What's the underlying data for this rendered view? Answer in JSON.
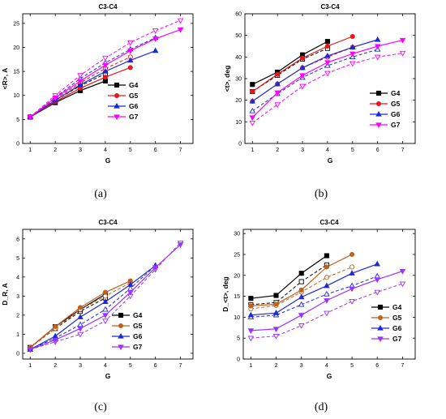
{
  "chart_data": [
    {
      "panel_label": "(a)",
      "type": "line",
      "title": "C3-C4",
      "xlabel": "G",
      "ylabel": "<R>, A",
      "xlim": [
        0.7,
        7.5
      ],
      "ylim": [
        0,
        27
      ],
      "xticks": [
        1,
        2,
        3,
        4,
        5,
        6,
        7
      ],
      "yticks": [
        0,
        5,
        10,
        15,
        20,
        25
      ],
      "legend_position": "lower-right",
      "series": [
        {
          "name": "G4",
          "color": "#000000",
          "marker": "square",
          "solid": {
            "x": [
              1,
              2,
              3,
              4
            ],
            "y": [
              5.5,
              8.5,
              11.0,
              13.0
            ]
          },
          "dashed": {
            "x": [
              1,
              2,
              3,
              4
            ],
            "y": [
              5.5,
              9.0,
              12.0,
              14.5
            ]
          }
        },
        {
          "name": "G5",
          "color": "#e8151b",
          "marker": "circle",
          "solid": {
            "x": [
              1,
              2,
              3,
              4,
              5
            ],
            "y": [
              5.5,
              8.7,
              11.5,
              13.8,
              15.8
            ]
          },
          "dashed": {
            "x": [
              1,
              2,
              3,
              4,
              5
            ],
            "y": [
              5.5,
              9.3,
              12.6,
              15.6,
              18.0
            ]
          }
        },
        {
          "name": "G6",
          "color": "#1f2bd1",
          "marker": "triangle-up",
          "solid": {
            "x": [
              1,
              2,
              3,
              4,
              5,
              6
            ],
            "y": [
              5.5,
              9.0,
              12.2,
              15.0,
              17.3,
              19.3
            ]
          },
          "dashed": {
            "x": [
              1,
              2,
              3,
              4,
              5,
              6
            ],
            "y": [
              5.5,
              9.6,
              13.5,
              16.8,
              19.6,
              22.0
            ]
          }
        },
        {
          "name": "G7",
          "color": "#ff00ff",
          "marker": "triangle-down",
          "solid": {
            "x": [
              1,
              2,
              3,
              4,
              5,
              6,
              7
            ],
            "y": [
              5.5,
              9.5,
              13.0,
              16.3,
              19.3,
              21.8,
              23.7
            ]
          },
          "dashed": {
            "x": [
              1,
              2,
              3,
              4,
              5,
              6,
              7
            ],
            "y": [
              5.5,
              10.0,
              14.2,
              17.8,
              21.0,
              23.5,
              25.6
            ]
          }
        }
      ]
    },
    {
      "panel_label": "(b)",
      "type": "line",
      "title": "C3-C4",
      "xlabel": "G",
      "ylabel": "<t>, deg",
      "xlim": [
        0.7,
        7.5
      ],
      "ylim": [
        0,
        60
      ],
      "xticks": [
        1,
        2,
        3,
        4,
        5,
        6,
        7
      ],
      "yticks": [
        0,
        10,
        20,
        30,
        40,
        50,
        60
      ],
      "legend_position": "lower-right",
      "series": [
        {
          "name": "G4",
          "color": "#000000",
          "marker": "square",
          "solid": {
            "x": [
              1,
              2,
              3,
              4
            ],
            "y": [
              27.3,
              33.0,
              41.0,
              47.2
            ]
          },
          "dashed": {
            "x": [
              1,
              2,
              3,
              4
            ],
            "y": [
              24.0,
              31.5,
              39.0,
              44.0
            ]
          }
        },
        {
          "name": "G5",
          "color": "#e8151b",
          "marker": "circle",
          "solid": {
            "x": [
              1,
              2,
              3,
              4,
              5
            ],
            "y": [
              24.0,
              32.0,
              39.5,
              45.0,
              49.5
            ]
          },
          "dashed": {
            "x": [
              1,
              2,
              3,
              4,
              5
            ],
            "y": [
              19.5,
              27.5,
              35.0,
              40.0,
              44.5
            ]
          }
        },
        {
          "name": "G6",
          "color": "#1f2bd1",
          "marker": "triangle-up",
          "solid": {
            "x": [
              1,
              2,
              3,
              4,
              5,
              6
            ],
            "y": [
              19.5,
              27.5,
              35.0,
              40.5,
              44.5,
              48.0
            ]
          },
          "dashed": {
            "x": [
              1,
              2,
              3,
              4,
              5,
              6
            ],
            "y": [
              15.0,
              23.0,
              30.5,
              36.0,
              40.0,
              43.5
            ]
          }
        },
        {
          "name": "G7",
          "color": "#ff00ff",
          "marker": "triangle-down",
          "solid": {
            "x": [
              1,
              2,
              3,
              4,
              5,
              6,
              7
            ],
            "y": [
              12.0,
              23.5,
              31.5,
              37.5,
              41.5,
              45.0,
              47.8
            ]
          },
          "dashed": {
            "x": [
              1,
              2,
              3,
              4,
              5,
              6,
              7
            ],
            "y": [
              9.5,
              18.0,
              26.5,
              32.5,
              37.0,
              40.0,
              41.8
            ]
          }
        }
      ]
    },
    {
      "panel_label": "(c)",
      "type": "line",
      "title": "C3-C4",
      "xlabel": "G",
      "ylabel": "D_R, A",
      "xlim": [
        0.7,
        7.5
      ],
      "ylim": [
        -0.3,
        6.5
      ],
      "xticks": [
        1,
        2,
        3,
        4,
        5,
        6,
        7
      ],
      "yticks": [
        0,
        1,
        2,
        3,
        4,
        5,
        6
      ],
      "legend_position": "lower-right",
      "series": [
        {
          "name": "G4",
          "color": "#000000",
          "marker": "square",
          "solid": {
            "x": [
              1,
              2,
              3,
              4
            ],
            "y": [
              0.3,
              1.4,
              2.3,
              3.1
            ]
          },
          "dashed": {
            "x": [
              1,
              2,
              3,
              4
            ],
            "y": [
              0.3,
              1.3,
              2.2,
              2.9
            ]
          }
        },
        {
          "name": "G5",
          "color": "#c0611d",
          "marker": "circle",
          "solid": {
            "x": [
              1,
              2,
              3,
              4,
              5
            ],
            "y": [
              0.3,
              1.4,
              2.4,
              3.2,
              3.8
            ]
          },
          "dashed": {
            "x": [
              1,
              2,
              3,
              4,
              5
            ],
            "y": [
              0.3,
              1.3,
              2.3,
              3.0,
              3.7
            ]
          }
        },
        {
          "name": "G6",
          "color": "#1f2bd1",
          "marker": "triangle-up",
          "solid": {
            "x": [
              1,
              2,
              3,
              4,
              5,
              6
            ],
            "y": [
              0.2,
              0.9,
              1.9,
              2.7,
              3.6,
              4.6
            ]
          },
          "dashed": {
            "x": [
              1,
              2,
              3,
              4,
              5,
              6
            ],
            "y": [
              0.2,
              0.8,
              1.5,
              2.3,
              3.4,
              4.6
            ]
          }
        },
        {
          "name": "G7",
          "color": "#9933ff",
          "marker": "triangle-down",
          "solid": {
            "x": [
              1,
              2,
              3,
              4,
              5,
              6,
              7
            ],
            "y": [
              0.2,
              0.7,
              1.3,
              2.0,
              3.2,
              4.5,
              5.7
            ]
          },
          "dashed": {
            "x": [
              1,
              2,
              3,
              4,
              5,
              6,
              7
            ],
            "y": [
              0.2,
              0.6,
              1.0,
              1.7,
              3.0,
              4.4,
              5.8
            ]
          }
        }
      ]
    },
    {
      "panel_label": "(d)",
      "type": "line",
      "title": "C3-C4",
      "xlabel": "G",
      "ylabel": "D_<t>, deg",
      "xlim": [
        0.7,
        7.5
      ],
      "ylim": [
        0,
        31
      ],
      "xticks": [
        1,
        2,
        3,
        4,
        5,
        6,
        7
      ],
      "yticks": [
        0,
        5,
        10,
        15,
        20,
        25,
        30
      ],
      "legend_position": "lower-right",
      "series": [
        {
          "name": "G4",
          "color": "#000000",
          "marker": "square",
          "solid": {
            "x": [
              1,
              2,
              3,
              4
            ],
            "y": [
              14.5,
              15.2,
              20.5,
              24.7
            ]
          },
          "dashed": {
            "x": [
              1,
              2,
              3,
              4
            ],
            "y": [
              13.0,
              13.5,
              18.5,
              22.5
            ]
          }
        },
        {
          "name": "G5",
          "color": "#c0611d",
          "marker": "circle",
          "solid": {
            "x": [
              1,
              2,
              3,
              4,
              5
            ],
            "y": [
              12.7,
              13.1,
              16.5,
              22.0,
              25.0
            ]
          },
          "dashed": {
            "x": [
              1,
              2,
              3,
              4,
              5
            ],
            "y": [
              12.0,
              12.8,
              16.0,
              19.5,
              22.0
            ]
          }
        },
        {
          "name": "G6",
          "color": "#1f2bd1",
          "marker": "triangle-up",
          "solid": {
            "x": [
              1,
              2,
              3,
              4,
              5,
              6
            ],
            "y": [
              10.5,
              11.0,
              14.8,
              17.5,
              20.5,
              22.7
            ]
          },
          "dashed": {
            "x": [
              1,
              2,
              3,
              4,
              5,
              6
            ],
            "y": [
              10.0,
              10.5,
              13.0,
              15.5,
              17.5,
              19.8
            ]
          }
        },
        {
          "name": "G7",
          "color": "#9933ff",
          "marker": "triangle-down",
          "solid": {
            "x": [
              1,
              2,
              3,
              4,
              5,
              6,
              7
            ],
            "y": [
              6.8,
              7.2,
              10.5,
              14.0,
              16.8,
              19.0,
              21.0
            ]
          },
          "dashed": {
            "x": [
              1,
              2,
              3,
              4,
              5,
              6,
              7
            ],
            "y": [
              5.0,
              5.5,
              8.0,
              11.0,
              13.8,
              16.0,
              18.0
            ]
          }
        }
      ]
    }
  ]
}
